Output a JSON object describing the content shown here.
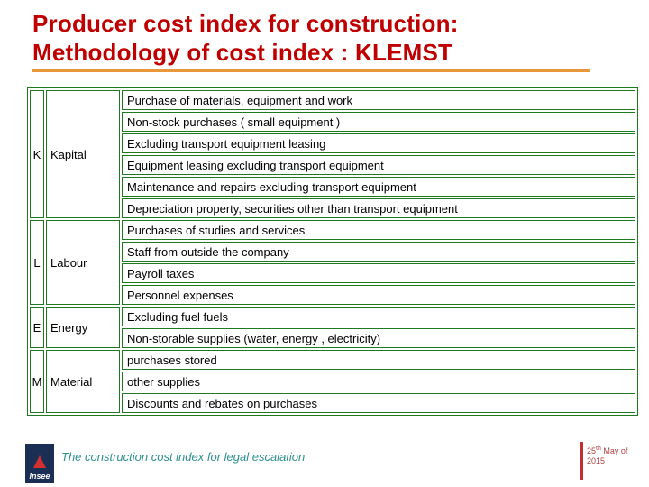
{
  "slide": {
    "title_line1": "Producer cost index for construction:",
    "title_line2": "Methodology of cost index : KLEMST",
    "footer": "The construction cost index for legal escalation",
    "logo": "Insee",
    "date_day": "25",
    "date_sup": "th",
    "date_tail": " May  of",
    "date_year": "2015"
  },
  "table": {
    "groups": [
      {
        "letter": "K",
        "label": "Kapital",
        "rows": [
          "Purchase of materials, equipment and work",
          "Non-stock purchases ( small equipment )",
          "Excluding transport equipment leasing",
          "Equipment leasing excluding transport equipment",
          "Maintenance and repairs excluding transport equipment",
          "Depreciation property, securities other than transport equipment"
        ]
      },
      {
        "letter": "L",
        "label": "Labour",
        "rows": [
          "Purchases of studies and services",
          "Staff from outside the company",
          "Payroll taxes",
          "Personnel expenses"
        ]
      },
      {
        "letter": "E",
        "label": "Energy",
        "rows": [
          "Excluding fuel fuels",
          "Non-storable supplies (water, energy , electricity)"
        ]
      },
      {
        "letter": "M",
        "label": "Material",
        "rows": [
          "purchases stored",
          "other supplies",
          "Discounts and rebates on purchases"
        ]
      }
    ]
  },
  "colors": {
    "title": "#c00000",
    "underline": "#e8973a",
    "table_border": "#1f7a1f",
    "footer_text": "#2e8f8f",
    "date_text": "#b04040",
    "logo_bg": "#1b2f55"
  }
}
